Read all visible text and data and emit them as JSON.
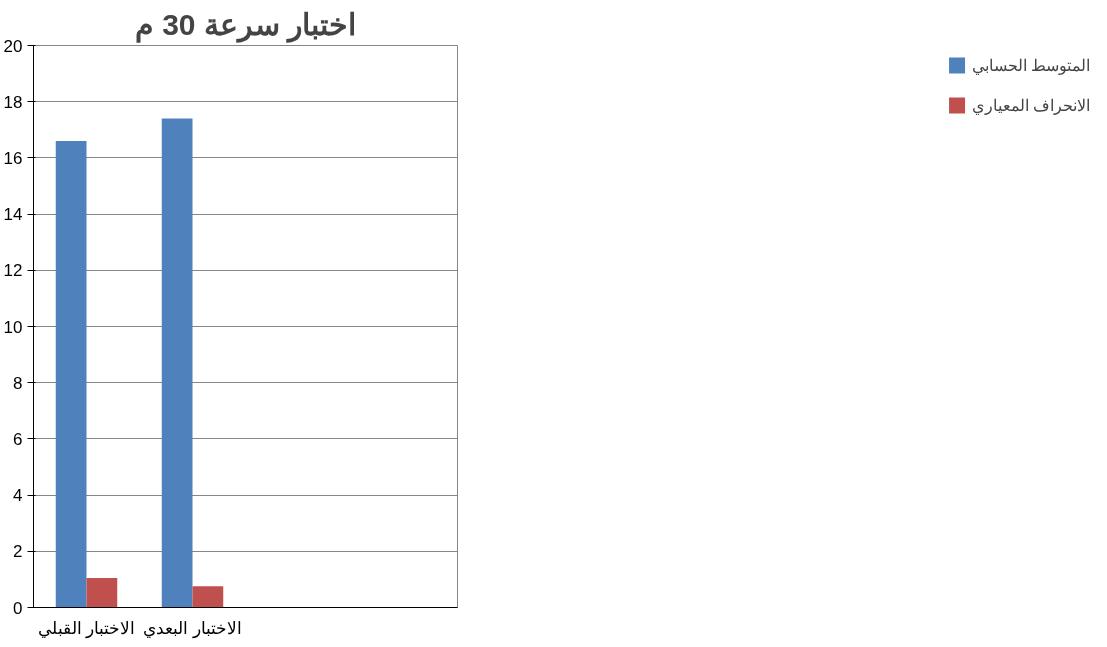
{
  "chart_data": {
    "type": "bar",
    "title": "اختبار سرعة 30 م",
    "categories": [
      "الاختبار القبلي",
      "الاختبار البعدي",
      null,
      null
    ],
    "series": [
      {
        "name": "المتوسط الحسابي",
        "color": "#4f81bd",
        "values": [
          16.6,
          17.4,
          null,
          null
        ]
      },
      {
        "name": "الانحراف المعياري",
        "color": "#c0504d",
        "values": [
          1.05,
          0.76,
          null,
          null
        ]
      }
    ],
    "ylim": [
      0,
      20
    ],
    "yticks": [
      0,
      2,
      4,
      6,
      8,
      10,
      12,
      14,
      16,
      18,
      20
    ],
    "grid": "y",
    "legend": "right"
  }
}
